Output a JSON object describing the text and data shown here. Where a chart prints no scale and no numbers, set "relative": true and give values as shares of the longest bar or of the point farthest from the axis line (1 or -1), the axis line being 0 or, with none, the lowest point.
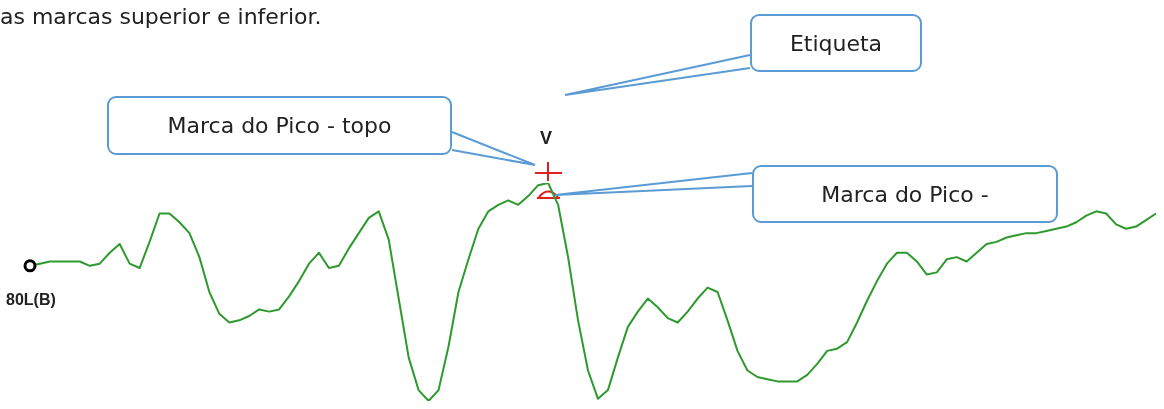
{
  "chart_data": {
    "type": "line",
    "relative": true,
    "categories": [
      null,
      null,
      null,
      null,
      null,
      null,
      null,
      null,
      null,
      null,
      null,
      null,
      null,
      null,
      null,
      null,
      null,
      null,
      null,
      null,
      null,
      null,
      null,
      null,
      null,
      null,
      null,
      null,
      null,
      null,
      null,
      null,
      null,
      null,
      null,
      null,
      null,
      null,
      null,
      null,
      null,
      null,
      null,
      null,
      null,
      null,
      null,
      null,
      null,
      null,
      null,
      null,
      null,
      null,
      null,
      null,
      null,
      null,
      null,
      null,
      null,
      null,
      null,
      null,
      null,
      null,
      null,
      null,
      null,
      null,
      null,
      null,
      null,
      null,
      null,
      null,
      null,
      null,
      null,
      null,
      null,
      null,
      null,
      null,
      null,
      null,
      null,
      null,
      null,
      null,
      null,
      null,
      null,
      null,
      null,
      null,
      null,
      null,
      null,
      null,
      null,
      null,
      null,
      null,
      null,
      null,
      null,
      null,
      null,
      null,
      null,
      null,
      null,
      null
    ],
    "series": [
      {
        "color": "#2e9a2e",
        "values": [
          0.62,
          0.63,
          0.64,
          0.64,
          0.64,
          0.64,
          0.62,
          0.63,
          0.68,
          0.72,
          0.63,
          0.61,
          0.73,
          0.86,
          0.86,
          0.82,
          0.77,
          0.66,
          0.5,
          0.4,
          0.36,
          0.37,
          0.39,
          0.42,
          0.41,
          0.42,
          0.48,
          0.55,
          0.63,
          0.68,
          0.61,
          0.62,
          0.7,
          0.77,
          0.84,
          0.87,
          0.74,
          0.47,
          0.2,
          0.05,
          0,
          0.05,
          0.25,
          0.5,
          0.65,
          0.79,
          0.87,
          0.9,
          0.92,
          0.9,
          0.94,
          0.99,
          1.0,
          0.9,
          0.66,
          0.37,
          0.14,
          0.01,
          0.05,
          0.2,
          0.34,
          0.41,
          0.47,
          0.43,
          0.38,
          0.36,
          0.41,
          0.47,
          0.52,
          0.5,
          0.37,
          0.23,
          0.14,
          0.11,
          0.1,
          0.09,
          0.09,
          0.09,
          0.12,
          0.17,
          0.23,
          0.24,
          0.27,
          0.36,
          0.46,
          0.55,
          0.63,
          0.68,
          0.68,
          0.64,
          0.58,
          0.59,
          0.65,
          0.66,
          0.64,
          0.68,
          0.72,
          0.73,
          0.75,
          0.76,
          0.77,
          0.77,
          0.78,
          0.79,
          0.8,
          0.82,
          0.85,
          0.87,
          0.86,
          0.81,
          0.79,
          0.8,
          0.83,
          0.86
        ]
      }
    ],
    "annotations": [
      "as marcas superior e inferior.",
      "Etiqueta",
      "Marca do Pico - topo",
      "Marca do Pico -",
      "V",
      "80L(B)"
    ],
    "legend": false
  }
}
